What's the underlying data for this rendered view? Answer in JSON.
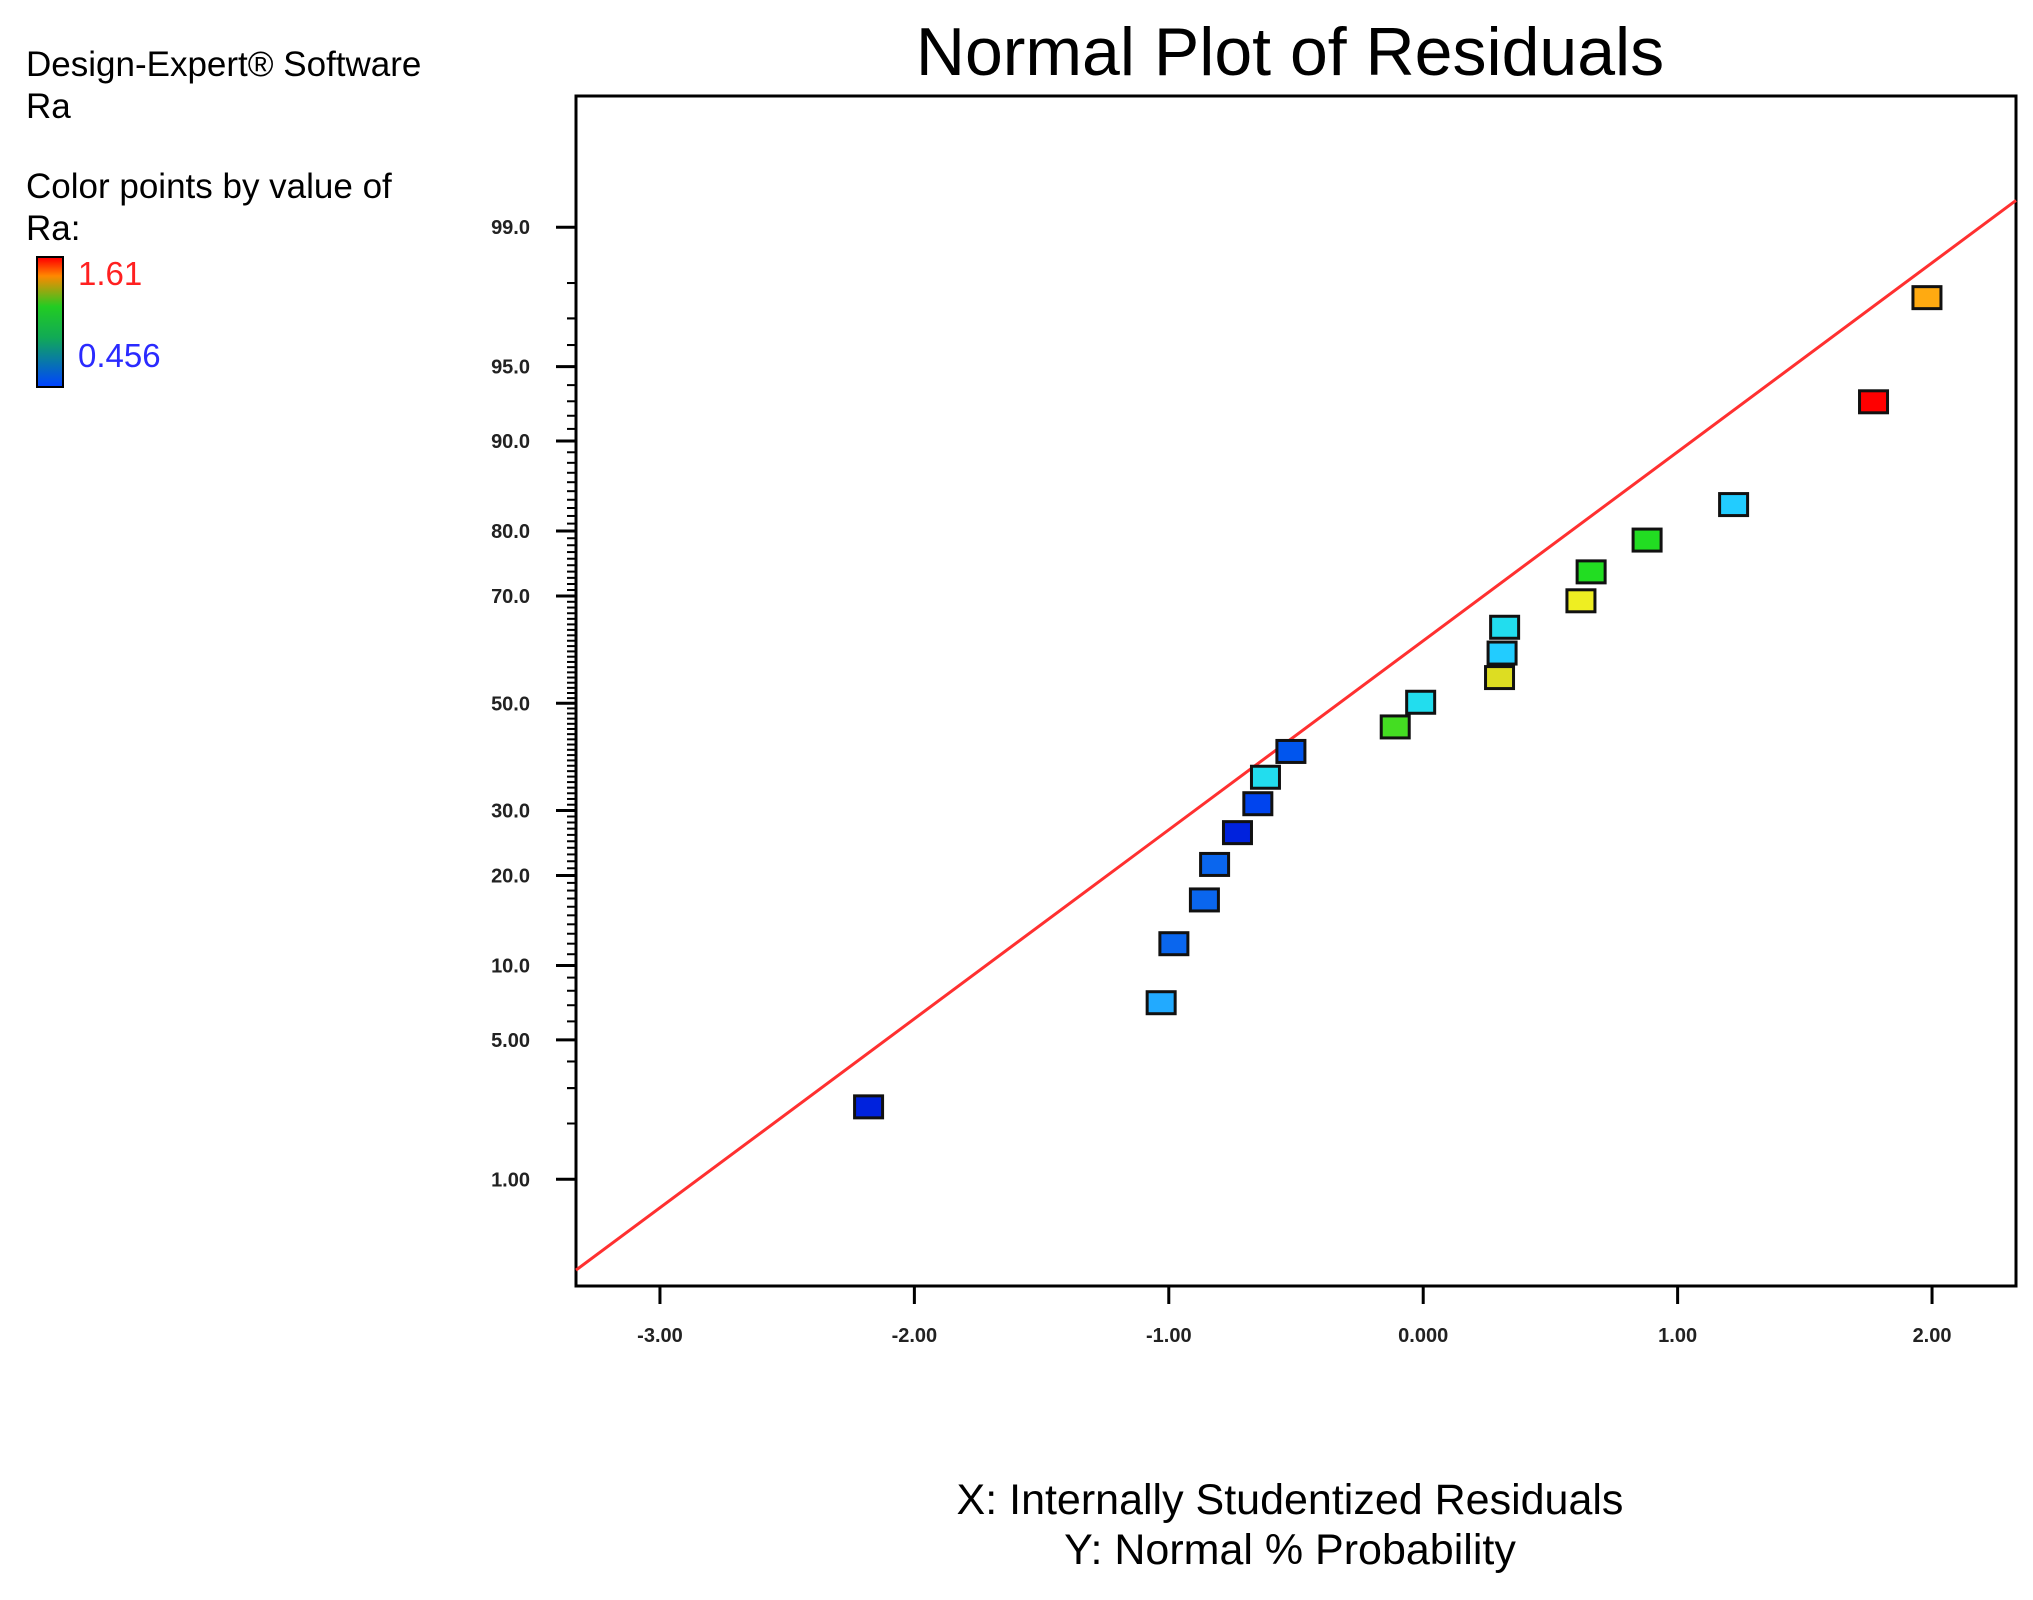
{
  "software": "Design-Expert® Software",
  "response_name": "Ra",
  "legend": {
    "heading_line1": "Color points by value of",
    "heading_line2": "Ra:",
    "max_label": "1.61",
    "min_label": "0.456",
    "max_color": "#ff0000",
    "min_color": "#0044ff"
  },
  "chart_data": {
    "type": "scatter",
    "title": "Normal Plot of Residuals",
    "xlabel": "X: Internally Studentized Residuals",
    "ylabel": "Y: Normal % Probability",
    "x_scale": "linear",
    "y_scale": "normal-probability",
    "xlim": [
      -3.33,
      2.33
    ],
    "ylim": [
      0.22,
      99.85
    ],
    "x_ticks": [
      -3.0,
      -2.0,
      -1.0,
      0.0,
      1.0,
      2.0
    ],
    "x_tick_labels": [
      "-3.00",
      "-2.00",
      "-1.00",
      "0.000",
      "1.00",
      "2.00"
    ],
    "y_ticks": [
      1,
      5,
      10,
      20,
      30,
      50,
      70,
      80,
      90,
      95,
      99
    ],
    "y_tick_labels": [
      "1.00",
      "5.00",
      "10.0",
      "20.0",
      "30.0",
      "50.0",
      "70.0",
      "80.0",
      "90.0",
      "95.0",
      "99.0"
    ],
    "grid": false,
    "reference_line": {
      "color": "#ff3030",
      "x_range": [
        -3.33,
        2.33
      ],
      "p_range": [
        0.28,
        99.3
      ]
    },
    "points": [
      {
        "x": -2.18,
        "p": 2.4,
        "color": "#0022dd"
      },
      {
        "x": -1.03,
        "p": 7.1,
        "color": "#22aaff"
      },
      {
        "x": -0.98,
        "p": 11.9,
        "color": "#0a66ee"
      },
      {
        "x": -0.86,
        "p": 16.7,
        "color": "#0a66ee"
      },
      {
        "x": -0.82,
        "p": 21.4,
        "color": "#0a66ee"
      },
      {
        "x": -0.73,
        "p": 26.2,
        "color": "#0022dd"
      },
      {
        "x": -0.65,
        "p": 31.0,
        "color": "#0044ee"
      },
      {
        "x": -0.62,
        "p": 35.7,
        "color": "#22ddee"
      },
      {
        "x": -0.52,
        "p": 40.5,
        "color": "#0055ee"
      },
      {
        "x": -0.11,
        "p": 45.2,
        "color": "#44dd22"
      },
      {
        "x": -0.01,
        "p": 50.0,
        "color": "#22ddee"
      },
      {
        "x": 0.3,
        "p": 54.8,
        "color": "#dddd22"
      },
      {
        "x": 0.31,
        "p": 59.5,
        "color": "#22ccff"
      },
      {
        "x": 0.32,
        "p": 64.3,
        "color": "#22ddee"
      },
      {
        "x": 0.62,
        "p": 69.0,
        "color": "#eeee22"
      },
      {
        "x": 0.66,
        "p": 73.8,
        "color": "#22dd22"
      },
      {
        "x": 0.88,
        "p": 78.6,
        "color": "#22dd22"
      },
      {
        "x": 1.22,
        "p": 83.3,
        "color": "#22ccff"
      },
      {
        "x": 1.77,
        "p": 92.9,
        "color": "#ff0000"
      },
      {
        "x": 1.98,
        "p": 97.6,
        "color": "#ffaa11"
      }
    ]
  }
}
